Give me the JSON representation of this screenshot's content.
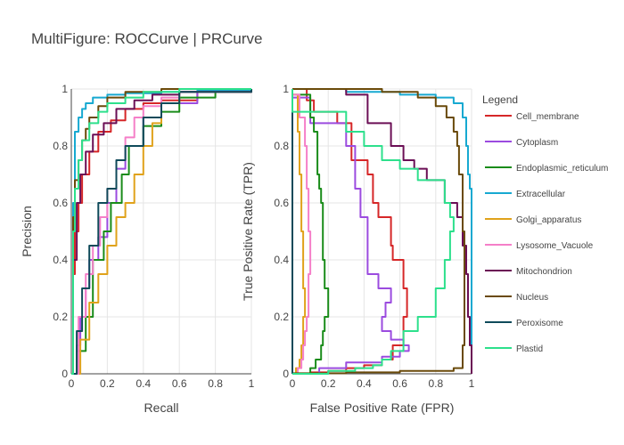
{
  "figure": {
    "title": "MultiFigure: ROCCurve | PRCurve"
  },
  "legend": {
    "title": "Legend",
    "items": [
      "Cell_membrane",
      "Cytoplasm",
      "Endoplasmic_reticulum",
      "Extracellular",
      "Golgi_apparatus",
      "Lysosome_Vacuole",
      "Mitochondrion",
      "Nucleus",
      "Peroxisome",
      "Plastid"
    ]
  },
  "colors": {
    "Cell_membrane": "#d62728",
    "Cytoplasm": "#9b4bdf",
    "Endoplasmic_reticulum": "#1a8c1a",
    "Extracellular": "#17a9d1",
    "Golgi_apparatus": "#e0a21b",
    "Lysosome_Vacuole": "#f57fc8",
    "Mitochondrion": "#6b0f55",
    "Nucleus": "#6a4a0a",
    "Peroxisome": "#0f4a5a",
    "Plastid": "#2de08c"
  },
  "chart_data": [
    {
      "type": "line",
      "panel": "left",
      "xlabel": "Recall",
      "ylabel": "Precision",
      "xlim": [
        0,
        1
      ],
      "ylim": [
        0,
        1
      ],
      "xticks": [
        "0",
        "0.2",
        "0.4",
        "0.6",
        "0.8",
        "1"
      ],
      "yticks": [
        "0",
        "0.2",
        "0.4",
        "0.6",
        "0.8",
        "1"
      ],
      "grid": true,
      "series": [
        {
          "name": "Cell_membrane",
          "x": [
            0.0,
            0.01,
            0.02,
            0.04,
            0.06,
            0.1,
            0.15,
            0.22,
            0.3,
            0.4,
            0.5,
            0.7,
            1.0
          ],
          "y": [
            0.0,
            0.35,
            0.5,
            0.6,
            0.7,
            0.78,
            0.85,
            0.89,
            0.93,
            0.95,
            0.96,
            0.99,
            1.0
          ]
        },
        {
          "name": "Cytoplasm",
          "x": [
            0.0,
            0.03,
            0.05,
            0.08,
            0.1,
            0.15,
            0.2,
            0.25,
            0.3,
            0.4,
            0.5,
            0.7,
            1.0
          ],
          "y": [
            0.0,
            0.1,
            0.2,
            0.3,
            0.4,
            0.48,
            0.6,
            0.72,
            0.8,
            0.9,
            0.95,
            0.99,
            1.0
          ]
        },
        {
          "name": "Endoplasmic_reticulum",
          "x": [
            0.0,
            0.03,
            0.08,
            0.12,
            0.18,
            0.22,
            0.28,
            0.32,
            0.4,
            0.5,
            0.6,
            0.8,
            1.0
          ],
          "y": [
            0.0,
            0.08,
            0.2,
            0.4,
            0.5,
            0.6,
            0.7,
            0.8,
            0.87,
            0.92,
            0.97,
            0.99,
            1.0
          ]
        },
        {
          "name": "Extracellular",
          "x": [
            0.0,
            0.01,
            0.02,
            0.04,
            0.06,
            0.08,
            0.12,
            0.2,
            0.3,
            0.5,
            0.7,
            1.0
          ],
          "y": [
            0.0,
            0.6,
            0.85,
            0.9,
            0.93,
            0.95,
            0.97,
            0.98,
            0.985,
            0.99,
            0.995,
            1.0
          ]
        },
        {
          "name": "Golgi_apparatus",
          "x": [
            0.0,
            0.05,
            0.1,
            0.15,
            0.2,
            0.25,
            0.3,
            0.35,
            0.4,
            0.45,
            0.5,
            0.6,
            1.0
          ],
          "y": [
            0.0,
            0.12,
            0.25,
            0.35,
            0.45,
            0.55,
            0.6,
            0.7,
            0.8,
            0.88,
            0.95,
            0.99,
            1.0
          ]
        },
        {
          "name": "Lysosome_Vacuole",
          "x": [
            0.0,
            0.04,
            0.08,
            0.12,
            0.16,
            0.2,
            0.25,
            0.3,
            0.35,
            0.4,
            0.5,
            0.6,
            1.0
          ],
          "y": [
            0.0,
            0.2,
            0.35,
            0.45,
            0.55,
            0.65,
            0.75,
            0.83,
            0.9,
            0.94,
            0.97,
            0.99,
            1.0
          ]
        },
        {
          "name": "Mitochondrion",
          "x": [
            0.0,
            0.01,
            0.03,
            0.05,
            0.08,
            0.12,
            0.18,
            0.25,
            0.35,
            0.45,
            0.6,
            1.0
          ],
          "y": [
            0.0,
            0.4,
            0.6,
            0.7,
            0.78,
            0.84,
            0.88,
            0.93,
            0.96,
            0.98,
            0.99,
            1.0
          ]
        },
        {
          "name": "Nucleus",
          "x": [
            0.0,
            0.01,
            0.02,
            0.04,
            0.06,
            0.08,
            0.1,
            0.15,
            0.2,
            0.3,
            0.5,
            1.0
          ],
          "y": [
            0.0,
            0.55,
            0.68,
            0.75,
            0.82,
            0.86,
            0.9,
            0.94,
            0.97,
            0.99,
            1.0,
            1.0
          ]
        },
        {
          "name": "Peroxisome",
          "x": [
            0.0,
            0.03,
            0.06,
            0.1,
            0.15,
            0.2,
            0.25,
            0.3,
            0.4,
            0.5,
            0.6,
            1.0
          ],
          "y": [
            0.0,
            0.15,
            0.3,
            0.45,
            0.6,
            0.65,
            0.75,
            0.8,
            0.9,
            0.95,
            0.99,
            1.0
          ]
        },
        {
          "name": "Plastid",
          "x": [
            0.0,
            0.01,
            0.02,
            0.04,
            0.06,
            0.1,
            0.15,
            0.2,
            0.3,
            0.4,
            0.6,
            1.0
          ],
          "y": [
            0.0,
            0.5,
            0.65,
            0.75,
            0.82,
            0.88,
            0.92,
            0.95,
            0.97,
            0.99,
            1.0,
            1.0
          ]
        }
      ]
    },
    {
      "type": "line",
      "panel": "right",
      "xlabel": "False Positive Rate (FPR)",
      "ylabel": "True Positive Rate (TPR)",
      "xlim": [
        0,
        1
      ],
      "ylim": [
        0,
        1
      ],
      "xticks": [
        "0",
        "0.2",
        "0.4",
        "0.6",
        "0.8",
        "1"
      ],
      "yticks": [
        "0",
        "0.2",
        "0.4",
        "0.6",
        "0.8",
        "1"
      ],
      "grid": true,
      "series": [
        {
          "name": "Cell_membrane",
          "x": [
            0.0,
            0.1,
            0.2,
            0.3,
            0.4,
            0.5,
            0.56,
            0.62,
            0.64,
            0.62,
            0.56,
            0.55,
            0.48,
            0.45,
            0.42,
            0.33,
            0.25,
            0.12,
            0.08,
            0.0
          ],
          "y": [
            0.0,
            0.005,
            0.01,
            0.02,
            0.03,
            0.05,
            0.1,
            0.2,
            0.3,
            0.4,
            0.45,
            0.55,
            0.6,
            0.7,
            0.75,
            0.88,
            0.92,
            0.96,
            1.0,
            1.0
          ]
        },
        {
          "name": "Cytoplasm",
          "x": [
            0.0,
            0.15,
            0.3,
            0.5,
            0.6,
            0.65,
            0.62,
            0.55,
            0.5,
            0.52,
            0.55,
            0.48,
            0.42,
            0.42,
            0.38,
            0.35,
            0.3,
            0.1,
            0.0
          ],
          "y": [
            0.0,
            0.02,
            0.04,
            0.06,
            0.08,
            0.1,
            0.12,
            0.15,
            0.2,
            0.25,
            0.3,
            0.35,
            0.45,
            0.55,
            0.65,
            0.8,
            0.88,
            0.97,
            1.0
          ]
        },
        {
          "name": "Endoplasmic_reticulum",
          "x": [
            0.0,
            0.1,
            0.13,
            0.16,
            0.17,
            0.18,
            0.2,
            0.18,
            0.17,
            0.17,
            0.16,
            0.15,
            0.14,
            0.14,
            0.12,
            0.1,
            0.0
          ],
          "y": [
            0.0,
            0.02,
            0.05,
            0.1,
            0.15,
            0.2,
            0.3,
            0.4,
            0.5,
            0.6,
            0.65,
            0.7,
            0.8,
            0.85,
            0.9,
            0.98,
            1.0
          ]
        },
        {
          "name": "Extracellular",
          "x": [
            0.0,
            0.1,
            0.3,
            0.6,
            0.8,
            0.9,
            0.95,
            0.97,
            0.98,
            0.99,
            1.0,
            1.0
          ],
          "y": [
            1.0,
            1.0,
            0.99,
            0.98,
            0.97,
            0.95,
            0.9,
            0.8,
            0.7,
            0.65,
            0.6,
            0.0
          ]
        },
        {
          "name": "Golgi_apparatus",
          "x": [
            0.0,
            0.02,
            0.04,
            0.05,
            0.06,
            0.06,
            0.07,
            0.06,
            0.05,
            0.04,
            0.03,
            0.0
          ],
          "y": [
            0.0,
            0.02,
            0.05,
            0.1,
            0.15,
            0.2,
            0.3,
            0.5,
            0.7,
            0.85,
            0.98,
            1.0
          ]
        },
        {
          "name": "Lysosome_Vacuole",
          "x": [
            0.0,
            0.03,
            0.05,
            0.06,
            0.07,
            0.08,
            0.09,
            0.1,
            0.09,
            0.08,
            0.07,
            0.04,
            0.0
          ],
          "y": [
            0.0,
            0.02,
            0.05,
            0.1,
            0.15,
            0.2,
            0.35,
            0.5,
            0.65,
            0.8,
            0.9,
            0.98,
            1.0
          ]
        },
        {
          "name": "Mitochondrion",
          "x": [
            0.0,
            0.3,
            0.42,
            0.55,
            0.62,
            0.68,
            0.75,
            0.85,
            0.92,
            0.95,
            0.97,
            0.98,
            0.99,
            1.0
          ],
          "y": [
            1.0,
            0.98,
            0.88,
            0.8,
            0.75,
            0.72,
            0.68,
            0.6,
            0.55,
            0.45,
            0.35,
            0.2,
            0.1,
            0.0
          ]
        },
        {
          "name": "Nucleus",
          "x": [
            0.0,
            0.25,
            0.5,
            0.7,
            0.8,
            0.86,
            0.9,
            0.92,
            0.93,
            0.95,
            0.96,
            0.96,
            0.95,
            0.9,
            0.6,
            0.3,
            0.0
          ],
          "y": [
            1.0,
            1.0,
            0.99,
            0.97,
            0.94,
            0.9,
            0.85,
            0.8,
            0.7,
            0.5,
            0.3,
            0.1,
            0.02,
            0.01,
            0.005,
            0.002,
            0.0
          ]
        },
        {
          "name": "Peroxisome",
          "x": [
            0.0,
            0.0,
            0.0
          ],
          "y": [
            0.0,
            0.5,
            1.0
          ]
        },
        {
          "name": "Plastid",
          "x": [
            0.0,
            0.2,
            0.35,
            0.45,
            0.5,
            0.55,
            0.62,
            0.7,
            0.8,
            0.85,
            0.88,
            0.9,
            0.88,
            0.85,
            0.7,
            0.6,
            0.5,
            0.4,
            0.3,
            0.0
          ],
          "y": [
            0.0,
            0.01,
            0.02,
            0.03,
            0.05,
            0.08,
            0.15,
            0.2,
            0.3,
            0.4,
            0.5,
            0.55,
            0.6,
            0.68,
            0.72,
            0.75,
            0.8,
            0.85,
            0.92,
            1.0
          ]
        }
      ]
    }
  ]
}
